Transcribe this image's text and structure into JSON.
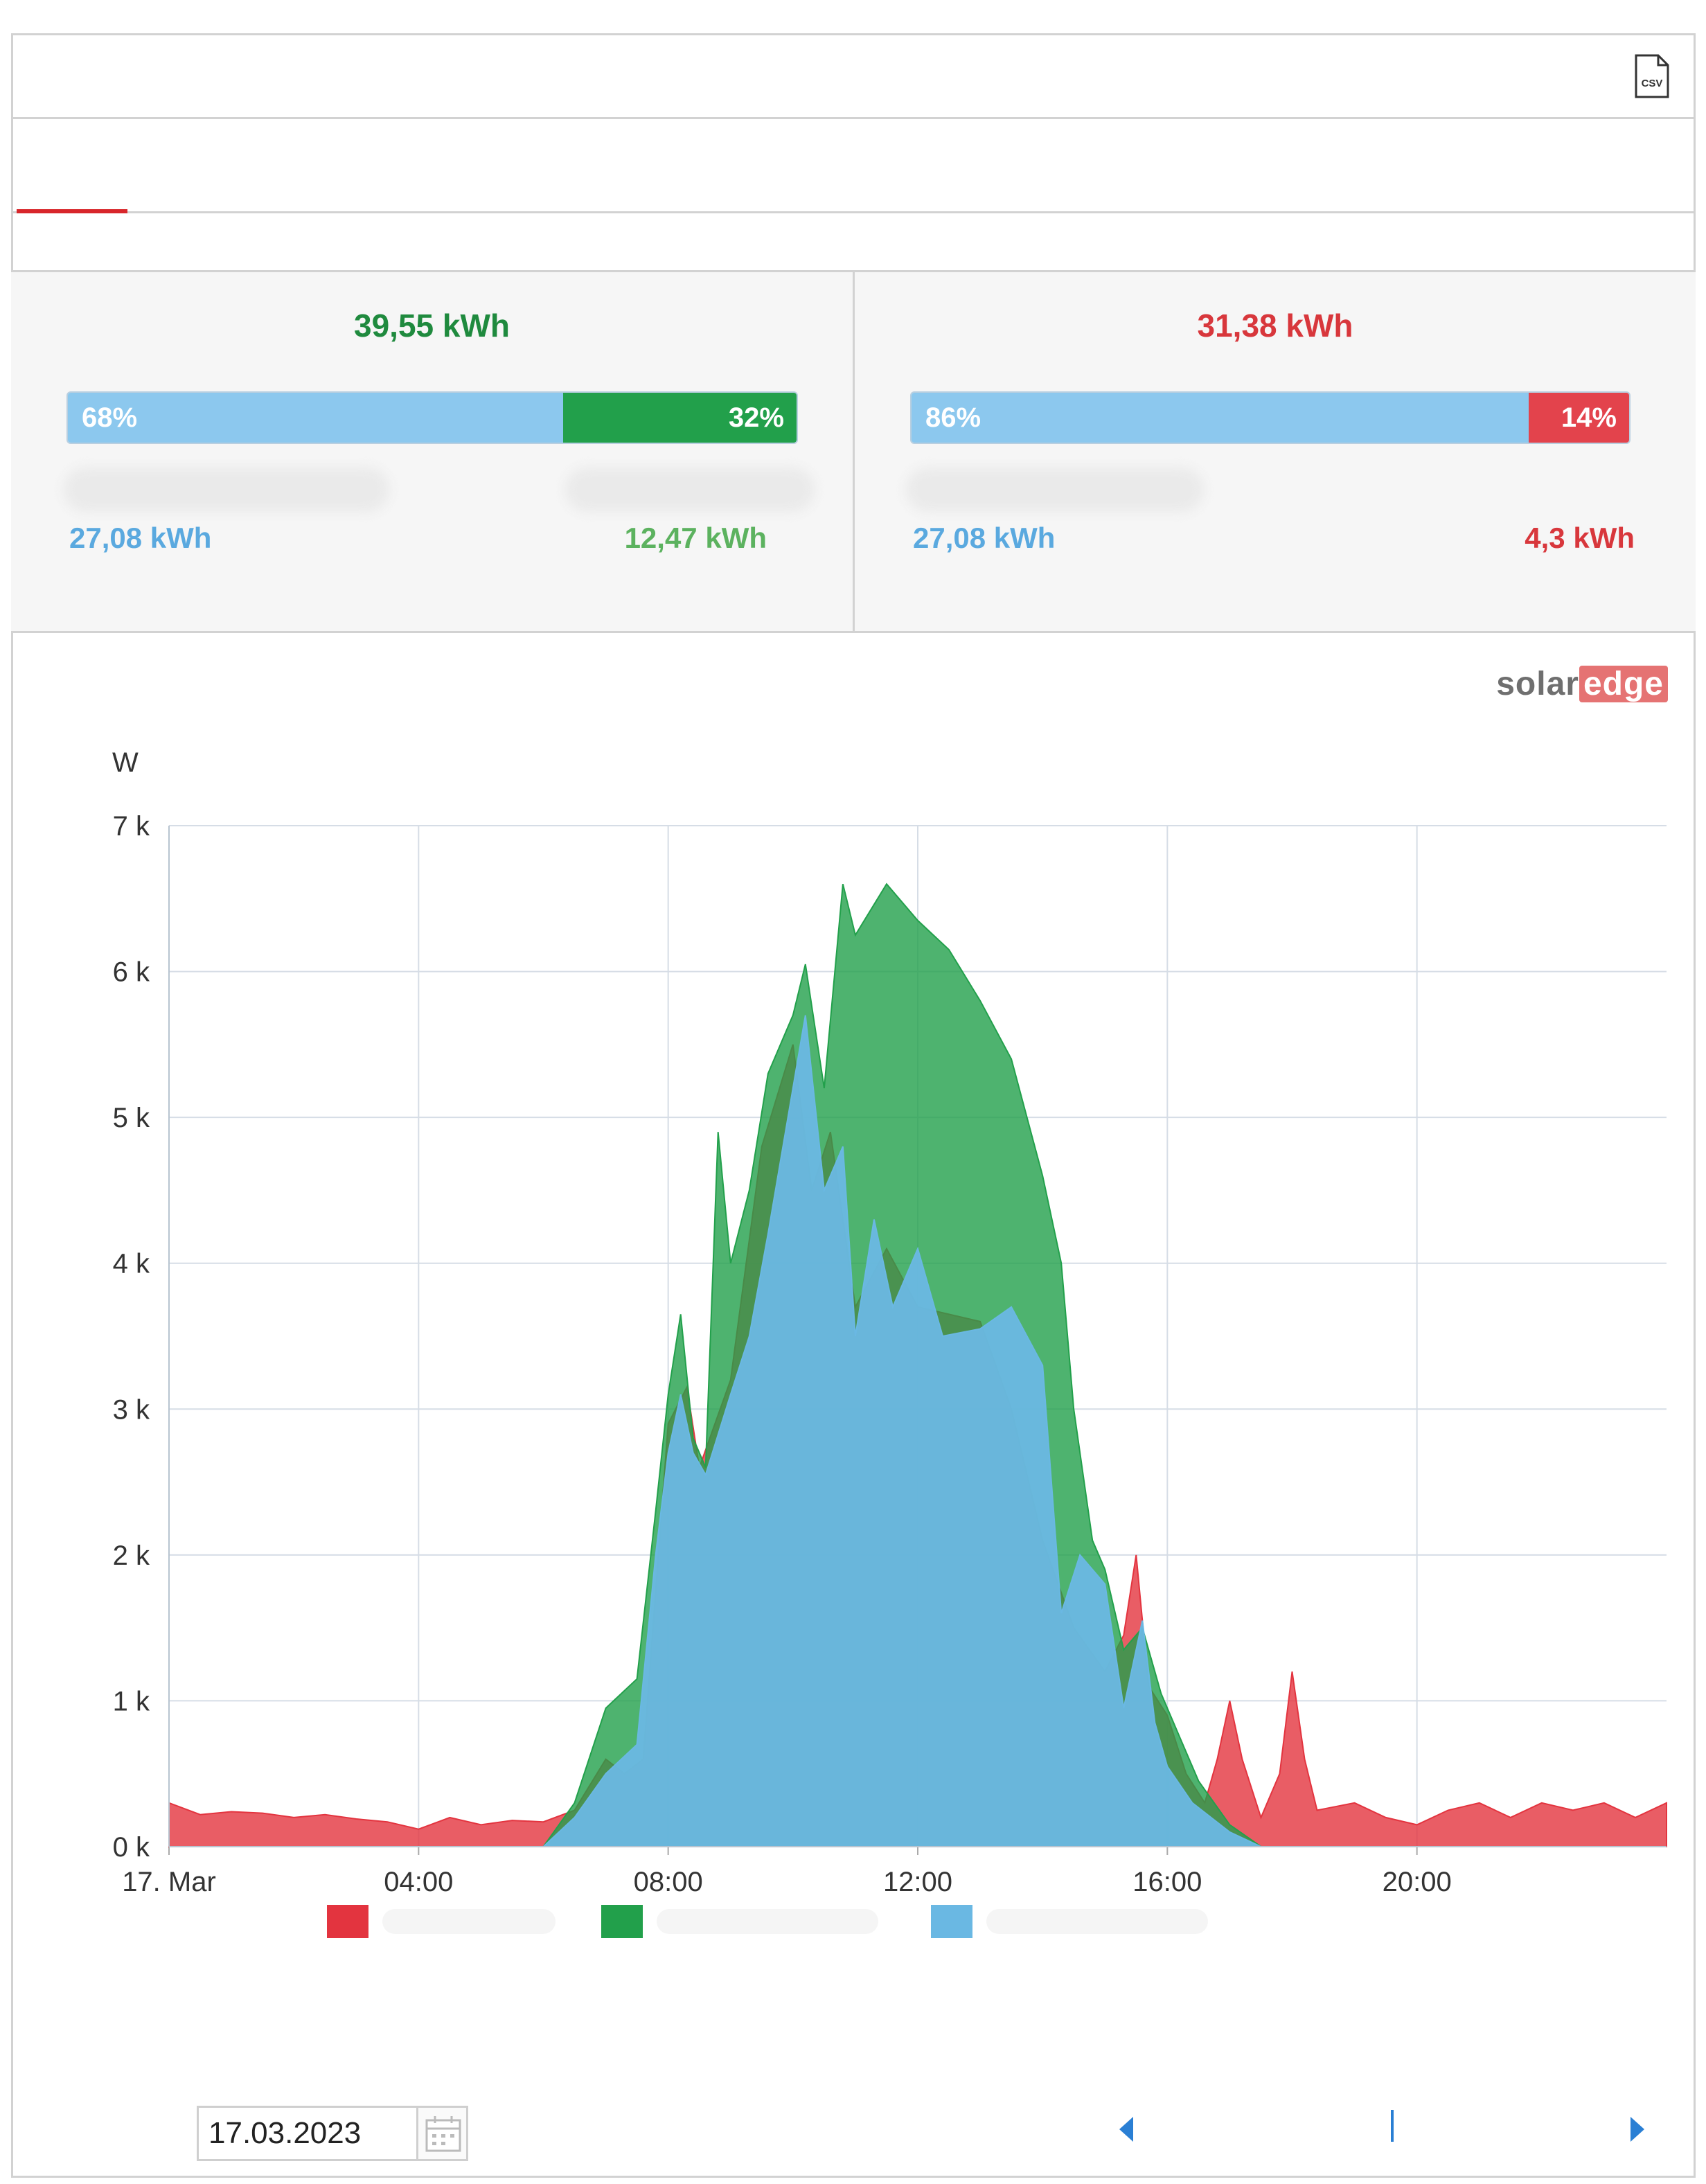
{
  "colors": {
    "consumption": "#e3343f",
    "production": "#22a04b",
    "self_consumption": "#6ab8e3",
    "tab_accent": "#d8262b",
    "production_text": "#1f8a3e",
    "consumption_text": "#d8373c",
    "blue_text": "#5aa9df",
    "green_text": "#5cb25f"
  },
  "toolbar": {
    "export_icon": "csv-file-icon",
    "export_label": "CSV"
  },
  "production_summary": {
    "total": "39,55 kWh",
    "bar": {
      "left_pct": 68,
      "right_pct": 32,
      "left_label": "68%",
      "right_label": "32%"
    },
    "left_value": "27,08 kWh",
    "right_value": "12,47 kWh"
  },
  "consumption_summary": {
    "total": "31,38 kWh",
    "bar": {
      "left_pct": 86,
      "right_pct": 14,
      "left_label": "86%",
      "right_label": "14%"
    },
    "left_value": "27,08 kWh",
    "right_value": "4,3 kWh"
  },
  "brand": {
    "part1": "solar",
    "part2": "edge"
  },
  "date": {
    "value": "17.03.2023",
    "calendar_icon": "calendar-icon"
  },
  "nav": {
    "prev_icon": "chevron-left-icon",
    "next_icon": "chevron-right-icon"
  },
  "chart_data": {
    "type": "area",
    "ylabel": "W",
    "xlim": [
      0,
      24
    ],
    "ylim": [
      0,
      7000
    ],
    "yticks": [
      0,
      1000,
      2000,
      3000,
      4000,
      5000,
      6000,
      7000
    ],
    "ytick_labels": [
      "0 k",
      "1 k",
      "2 k",
      "3 k",
      "4 k",
      "5 k",
      "6 k",
      "7 k"
    ],
    "xticks": [
      0,
      4,
      8,
      12,
      16,
      20
    ],
    "xtick_labels": [
      "17. Mar",
      "04:00",
      "08:00",
      "12:00",
      "16:00",
      "20:00"
    ],
    "grid": true,
    "series": [
      {
        "color": "#e3343f",
        "points": [
          [
            0,
            300
          ],
          [
            0.5,
            220
          ],
          [
            1,
            240
          ],
          [
            1.5,
            230
          ],
          [
            2,
            200
          ],
          [
            2.5,
            220
          ],
          [
            3,
            190
          ],
          [
            3.5,
            170
          ],
          [
            4,
            120
          ],
          [
            4.5,
            200
          ],
          [
            5,
            150
          ],
          [
            5.5,
            180
          ],
          [
            6,
            170
          ],
          [
            6.5,
            250
          ],
          [
            7,
            600
          ],
          [
            7.3,
            500
          ],
          [
            7.6,
            600
          ],
          [
            8,
            2900
          ],
          [
            8.3,
            3150
          ],
          [
            8.5,
            2600
          ],
          [
            9,
            3200
          ],
          [
            9.5,
            4800
          ],
          [
            10,
            5500
          ],
          [
            10.3,
            4500
          ],
          [
            10.6,
            4900
          ],
          [
            11,
            3700
          ],
          [
            11.5,
            4100
          ],
          [
            12,
            3700
          ],
          [
            13,
            3600
          ],
          [
            13.5,
            3000
          ],
          [
            14,
            2100
          ],
          [
            14.5,
            1500
          ],
          [
            15,
            1200
          ],
          [
            15.3,
            1450
          ],
          [
            15.5,
            2000
          ],
          [
            15.7,
            1100
          ],
          [
            16,
            900
          ],
          [
            16.3,
            500
          ],
          [
            16.6,
            300
          ],
          [
            16.8,
            600
          ],
          [
            17,
            1000
          ],
          [
            17.2,
            600
          ],
          [
            17.5,
            200
          ],
          [
            17.8,
            500
          ],
          [
            18,
            1200
          ],
          [
            18.2,
            600
          ],
          [
            18.4,
            250
          ],
          [
            19,
            300
          ],
          [
            19.5,
            200
          ],
          [
            20,
            150
          ],
          [
            20.5,
            250
          ],
          [
            21,
            300
          ],
          [
            21.5,
            200
          ],
          [
            22,
            300
          ],
          [
            22.5,
            250
          ],
          [
            23,
            300
          ],
          [
            23.5,
            200
          ],
          [
            24,
            300
          ]
        ]
      },
      {
        "color": "#22a04b",
        "points": [
          [
            0,
            0
          ],
          [
            6,
            0
          ],
          [
            6.5,
            300
          ],
          [
            7,
            950
          ],
          [
            7.5,
            1150
          ],
          [
            7.8,
            2300
          ],
          [
            8,
            3100
          ],
          [
            8.2,
            3650
          ],
          [
            8.4,
            2800
          ],
          [
            8.6,
            2600
          ],
          [
            8.8,
            4900
          ],
          [
            9,
            4000
          ],
          [
            9.3,
            4500
          ],
          [
            9.6,
            5300
          ],
          [
            10,
            5700
          ],
          [
            10.2,
            6050
          ],
          [
            10.5,
            5200
          ],
          [
            10.8,
            6600
          ],
          [
            11,
            6250
          ],
          [
            11.5,
            6600
          ],
          [
            12,
            6350
          ],
          [
            12.5,
            6150
          ],
          [
            13,
            5800
          ],
          [
            13.5,
            5400
          ],
          [
            14,
            4600
          ],
          [
            14.3,
            4000
          ],
          [
            14.5,
            3000
          ],
          [
            14.8,
            2100
          ],
          [
            15,
            1900
          ],
          [
            15.3,
            1350
          ],
          [
            15.6,
            1500
          ],
          [
            15.9,
            1050
          ],
          [
            16.2,
            750
          ],
          [
            16.5,
            450
          ],
          [
            17,
            150
          ],
          [
            17.5,
            0
          ],
          [
            24,
            0
          ]
        ]
      },
      {
        "color": "#6ab8e3",
        "points": [
          [
            0,
            0
          ],
          [
            6,
            0
          ],
          [
            6.5,
            200
          ],
          [
            7,
            500
          ],
          [
            7.5,
            700
          ],
          [
            7.8,
            2000
          ],
          [
            8,
            2700
          ],
          [
            8.2,
            3100
          ],
          [
            8.4,
            2700
          ],
          [
            8.6,
            2550
          ],
          [
            9,
            3100
          ],
          [
            9.3,
            3500
          ],
          [
            9.6,
            4200
          ],
          [
            10,
            5200
          ],
          [
            10.2,
            5700
          ],
          [
            10.5,
            4500
          ],
          [
            10.8,
            4800
          ],
          [
            11,
            3500
          ],
          [
            11.3,
            4300
          ],
          [
            11.6,
            3700
          ],
          [
            12,
            4100
          ],
          [
            12.4,
            3500
          ],
          [
            13,
            3550
          ],
          [
            13.5,
            3700
          ],
          [
            14,
            3300
          ],
          [
            14.3,
            1600
          ],
          [
            14.6,
            2000
          ],
          [
            15,
            1800
          ],
          [
            15.3,
            950
          ],
          [
            15.6,
            1550
          ],
          [
            15.8,
            850
          ],
          [
            16,
            550
          ],
          [
            16.4,
            300
          ],
          [
            17,
            100
          ],
          [
            17.5,
            0
          ],
          [
            24,
            0
          ]
        ]
      }
    ]
  }
}
